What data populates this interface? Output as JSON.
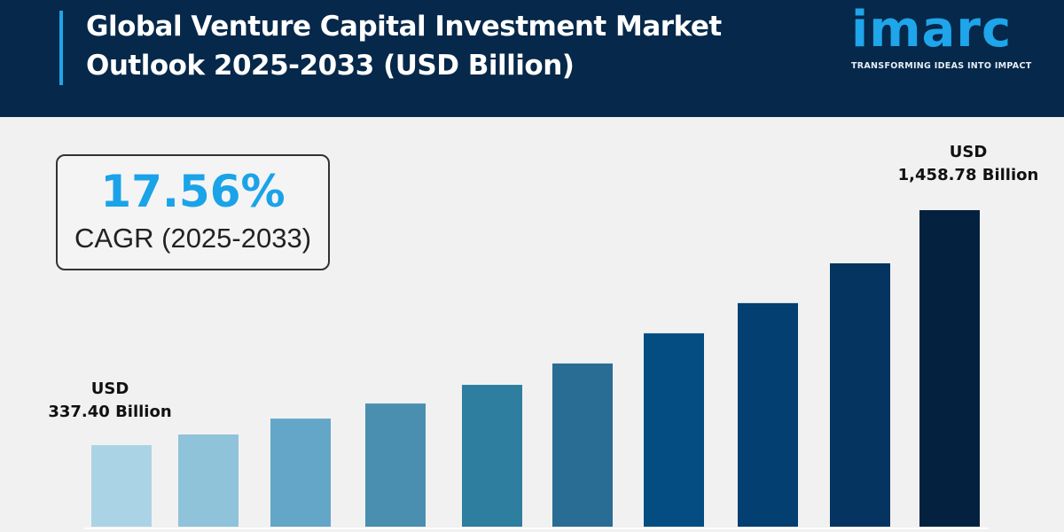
{
  "header": {
    "title_line1": "Global Venture Capital Investment Market",
    "title_line2": "Outlook 2025-2033 (USD Billion)"
  },
  "logo": {
    "word": "imarc",
    "tagline": "TRANSFORMING IDEAS INTO IMPACT"
  },
  "cagr": {
    "value": "17.56%",
    "label": "CAGR (2025-2033)"
  },
  "colors": {
    "header": "#06284a",
    "accent": "#1ea5ea",
    "cagr": "#1aa3e8"
  },
  "chart_data": {
    "type": "bar",
    "title": "Global Venture Capital Investment Market Outlook 2025-2033 (USD Billion)",
    "categories": [
      "",
      "",
      "",
      "",
      "",
      "",
      "",
      "",
      "",
      ""
    ],
    "values": [
      337.4,
      388,
      464,
      536,
      625,
      727,
      871,
      1015,
      1205,
      1458.78
    ],
    "bar_colors": [
      "#aad4e6",
      "#8ec3da",
      "#64a6c7",
      "#4a8fb0",
      "#2e7ea0",
      "#2a6d94",
      "#034d83",
      "#033f70",
      "#04345f",
      "#04223f"
    ],
    "data_labels": [
      {
        "index": 0,
        "line1": "USD",
        "line2": "337.40 Billion"
      },
      {
        "index": 9,
        "line1": "USD",
        "line2": "1,458.78 Billion"
      }
    ],
    "grid": false
  }
}
